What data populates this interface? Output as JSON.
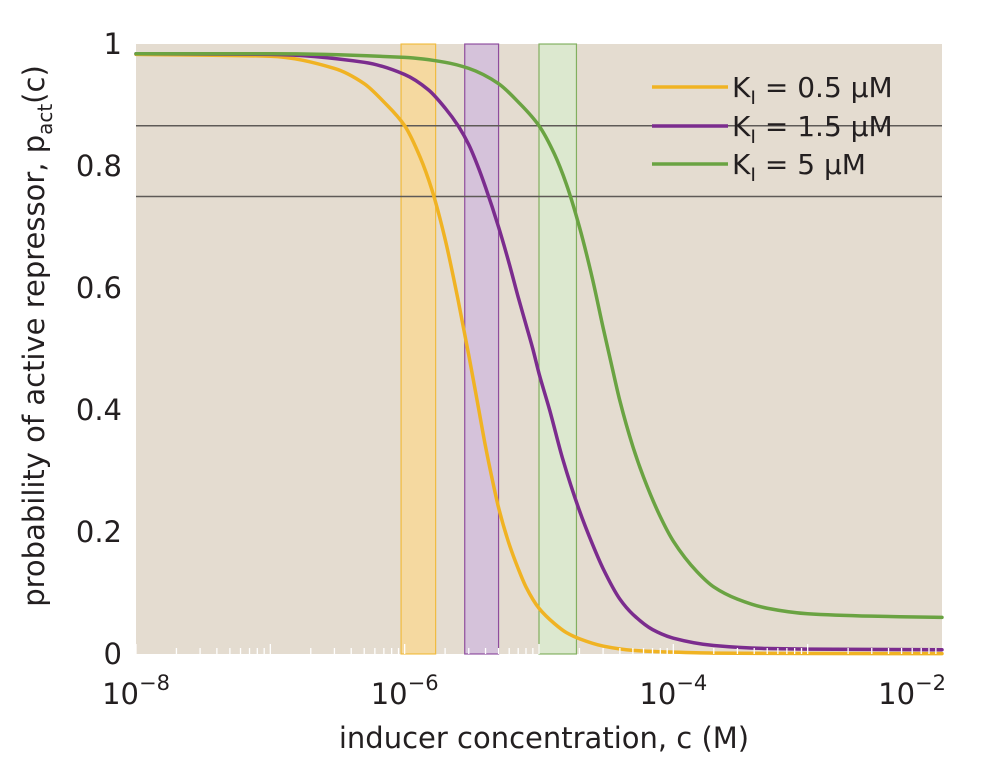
{
  "chart_data": {
    "type": "line",
    "xlabel": "inducer concentration, c (M)",
    "ylabel": {
      "base": "probability of active repressor, p",
      "subscript": "act",
      "suffix": "(c)"
    },
    "x_scale": "log",
    "xlim": [
      1e-08,
      0.01
    ],
    "ylim": [
      0,
      1
    ],
    "x_ticks": [
      {
        "value": 1e-08,
        "base": "10",
        "exp": "−8"
      },
      {
        "value": 1e-06,
        "base": "10",
        "exp": "−6"
      },
      {
        "value": 0.0001,
        "base": "10",
        "exp": "−4"
      },
      {
        "value": 0.01,
        "base": "10",
        "exp": "−2"
      }
    ],
    "y_ticks": [
      {
        "value": 0,
        "label": "0"
      },
      {
        "value": 0.2,
        "label": "0.2"
      },
      {
        "value": 0.4,
        "label": "0.4"
      },
      {
        "value": 0.6,
        "label": "0.6"
      },
      {
        "value": 0.8,
        "label": "0.8"
      },
      {
        "value": 1,
        "label": "1"
      }
    ],
    "reference_lines_y": [
      0.866,
      0.75
    ],
    "legend_position": "top-right",
    "background_color": "#e4dcd0",
    "series": [
      {
        "name": {
          "base": "K",
          "subscript": "I",
          "suffix": " = 0.5 μM"
        },
        "color": "#f0b323",
        "band_x": [
          9.4e-07,
          1.7e-06
        ],
        "band_fill": "#f5d9a0",
        "x": [
          1e-08,
          1e-07,
          3e-07,
          5e-07,
          7e-07,
          1e-06,
          1.3e-06,
          1.6e-06,
          2e-06,
          2.5e-06,
          3e-06,
          3.5e-06,
          4e-06,
          4.5e-06,
          5e-06,
          6e-06,
          7e-06,
          8e-06,
          1e-05,
          1.3e-05,
          1.6e-05,
          2e-05,
          3e-05,
          5e-05,
          0.0001,
          0.0002,
          0.0005,
          0.001,
          0.01
        ],
        "y": [
          0.983,
          0.98,
          0.96,
          0.935,
          0.905,
          0.866,
          0.815,
          0.76,
          0.68,
          0.58,
          0.49,
          0.41,
          0.34,
          0.285,
          0.24,
          0.18,
          0.14,
          0.11,
          0.075,
          0.05,
          0.035,
          0.025,
          0.013,
          0.006,
          0.003,
          0.0015,
          0.001,
          0.0008,
          0.0006
        ]
      },
      {
        "name": {
          "base": "K",
          "subscript": "I",
          "suffix": " = 1.5 μM"
        },
        "color": "#7b2c8e",
        "band_x": [
          2.8e-06,
          5e-06
        ],
        "band_fill": "#d5c2da",
        "x": [
          1e-08,
          1e-07,
          5e-07,
          1e-06,
          1.5e-06,
          2e-06,
          2.5e-06,
          3e-06,
          3.5e-06,
          4e-06,
          5e-06,
          6e-06,
          7e-06,
          8e-06,
          9e-06,
          1e-05,
          1.2e-05,
          1.5e-05,
          2e-05,
          2.5e-05,
          3e-05,
          4e-05,
          5e-05,
          7e-05,
          0.0001,
          0.0002,
          0.0005,
          0.001,
          0.01
        ],
        "y": [
          0.984,
          0.983,
          0.97,
          0.95,
          0.925,
          0.895,
          0.866,
          0.835,
          0.8,
          0.765,
          0.7,
          0.64,
          0.585,
          0.54,
          0.5,
          0.46,
          0.4,
          0.32,
          0.235,
          0.18,
          0.14,
          0.09,
          0.065,
          0.04,
          0.026,
          0.014,
          0.009,
          0.008,
          0.007
        ]
      },
      {
        "name": {
          "base": "K",
          "subscript": "I",
          "suffix": " = 5 μM"
        },
        "color": "#6aa342",
        "band_x": [
          1e-05,
          1.9e-05
        ],
        "band_fill": "#dce8cf",
        "x": [
          1e-08,
          1e-07,
          1e-06,
          2e-06,
          3e-06,
          5e-06,
          7e-06,
          1e-05,
          1.3e-05,
          1.6e-05,
          2e-05,
          2.5e-05,
          3e-05,
          3.5e-05,
          4e-05,
          5e-05,
          6e-05,
          8e-05,
          0.0001,
          0.00015,
          0.0002,
          0.0003,
          0.0005,
          0.001,
          0.003,
          0.01
        ],
        "y": [
          0.984,
          0.984,
          0.978,
          0.97,
          0.96,
          0.935,
          0.905,
          0.866,
          0.82,
          0.77,
          0.7,
          0.615,
          0.535,
          0.47,
          0.415,
          0.34,
          0.29,
          0.225,
          0.185,
          0.135,
          0.11,
          0.09,
          0.075,
          0.066,
          0.062,
          0.06
        ]
      }
    ]
  }
}
